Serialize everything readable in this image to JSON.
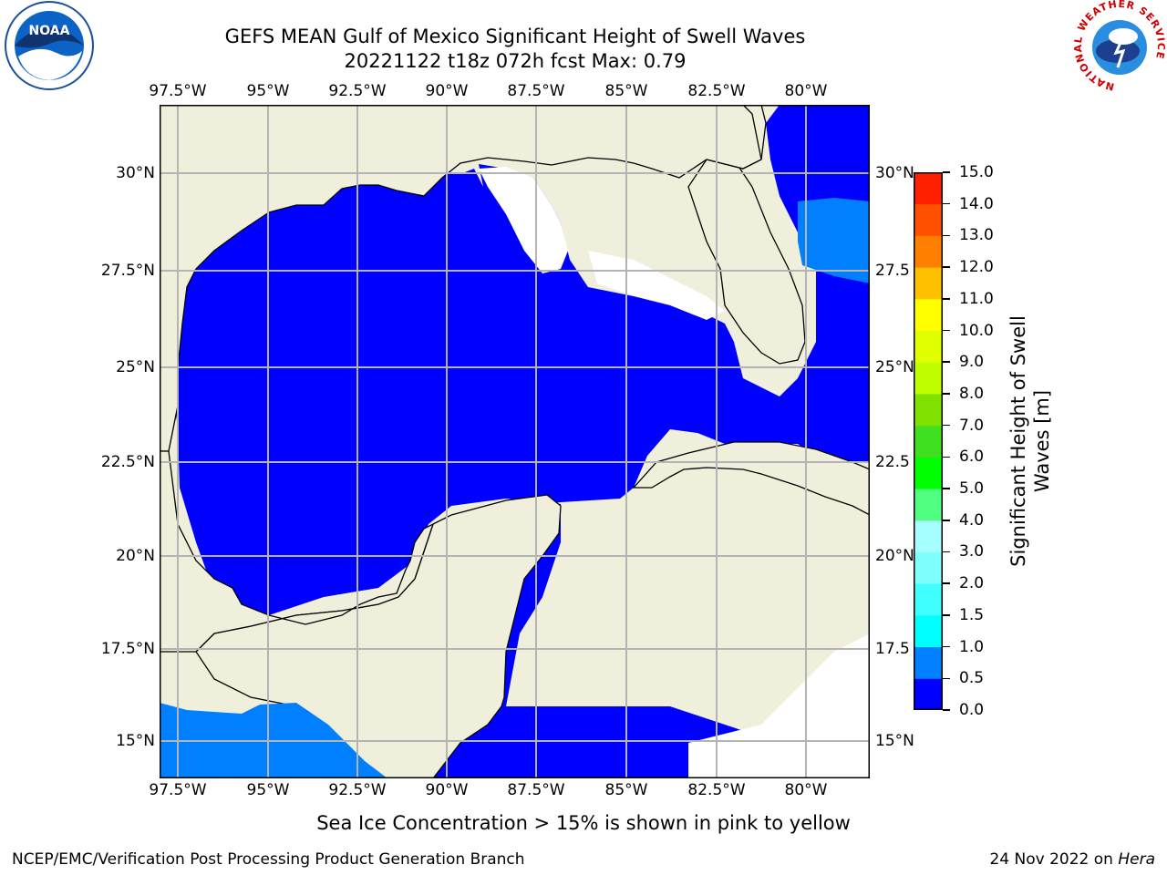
{
  "title_line1": "GEFS MEAN Gulf of Mexico Significant Height of Swell Waves",
  "title_line2": "20221122 t18z 072h fcst   Max: 0.79",
  "logos": {
    "left": "noaa-logo",
    "right": "nws-logo",
    "left_text": "NOAA",
    "nws_ring_text": "NATIONAL WEATHER SERVICE"
  },
  "lon_ticks": [
    "97.5°W",
    "95°W",
    "92.5°W",
    "90°W",
    "87.5°W",
    "85°W",
    "82.5°W",
    "80°W"
  ],
  "lon_ticks_bottom": [
    "97.5°W",
    "95°W",
    "92.5°W",
    "90°W",
    "87.5°W",
    "85°W",
    "82.5°W",
    "80°W"
  ],
  "lat_ticks_left": [
    "30°N",
    "27.5°N",
    "25°N",
    "22.5°N",
    "20°N",
    "17.5°N",
    "15°N"
  ],
  "lat_ticks_right": [
    "30°N",
    "27.5",
    "25°N",
    "22.5",
    "20°N",
    "17.5",
    "15°N"
  ],
  "colorbar": {
    "label": "Significant Height of Swell\nWaves [m]",
    "ticks": [
      "0.0",
      "0.5",
      "1.0",
      "1.5",
      "2.0",
      "3.0",
      "4.0",
      "5.0",
      "6.0",
      "7.0",
      "8.0",
      "9.0",
      "10.0",
      "11.0",
      "12.0",
      "13.0",
      "14.0",
      "15.0"
    ],
    "colors": [
      "#0000ff",
      "#0080ff",
      "#00ffff",
      "#40ffff",
      "#80ffff",
      "#a8ffff",
      "#50ff80",
      "#00ff00",
      "#40e020",
      "#80e000",
      "#c0ff00",
      "#e0ff00",
      "#ffff00",
      "#ffc000",
      "#ff8000",
      "#ff5000",
      "#ff2000",
      "#ff0000"
    ]
  },
  "colors": {
    "land": "#efefdc",
    "ocean_low": "#0000ff",
    "ocean_mid": "#0080ff",
    "grid": "#b4b4b4"
  },
  "footer_note": "Sea Ice Concentration > 15% is shown in pink to yellow",
  "credit_left": "NCEP/EMC/Verification Post Processing Product Generation Branch",
  "credit_date": "24 Nov 2022 on ",
  "credit_host": "Hera"
}
